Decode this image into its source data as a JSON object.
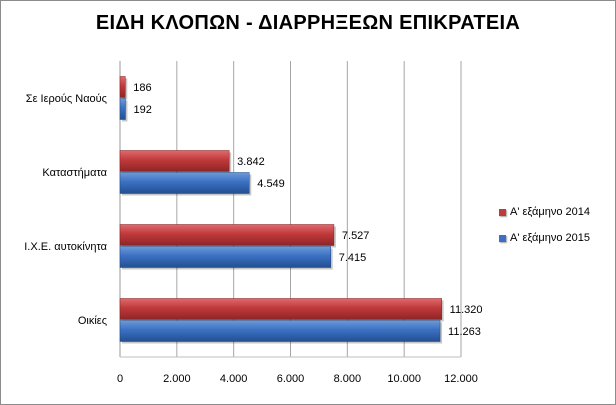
{
  "chart_data": {
    "type": "bar",
    "orientation": "horizontal",
    "title": "ΕΙΔΗ ΚΛΟΠΩΝ - ΔΙΑΡΡΗΞΕΩΝ  ΕΠΙΚΡΑΤΕΙΑ",
    "categories": [
      "Σε Ιερούς Ναούς",
      "Καταστήματα",
      "Ι.Χ.Ε. αυτοκίνητα",
      "Οικίες"
    ],
    "series": [
      {
        "name": "Α' εξάμηνο 2014",
        "color": "#c0393b",
        "values": [
          186,
          3842,
          7527,
          11320
        ],
        "labels": [
          "186",
          "3.842",
          "7.527",
          "11.320"
        ]
      },
      {
        "name": "Α' εξάμηνο 2015",
        "color": "#3b70c2",
        "values": [
          192,
          4549,
          7415,
          11263
        ],
        "labels": [
          "192",
          "4.549",
          "7.415",
          "11.263"
        ]
      }
    ],
    "xlim": [
      0,
      12000
    ],
    "xticks": [
      0,
      2000,
      4000,
      6000,
      8000,
      10000,
      12000
    ],
    "xtick_labels": [
      "0",
      "2.000",
      "4.000",
      "6.000",
      "8.000",
      "10.000",
      "12.000"
    ],
    "grid": true,
    "legend_position": "right"
  }
}
